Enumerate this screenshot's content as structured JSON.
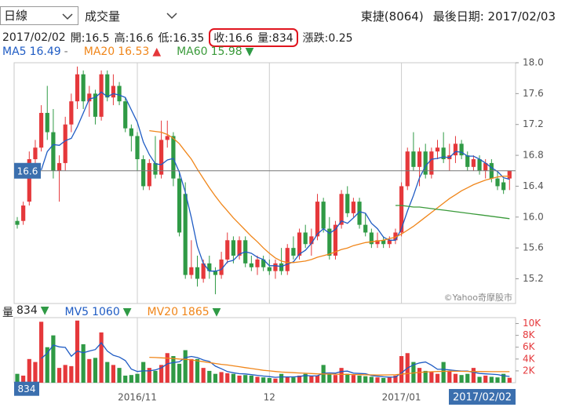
{
  "header": {
    "period": "日線",
    "indicator": "成交量",
    "stock": "東捷(8064)",
    "last_date_label": "最後日期:",
    "last_date": "2017/02/03"
  },
  "info": {
    "date": "2017/02/02",
    "fields": [
      {
        "label": "開:",
        "value": 16.5
      },
      {
        "label": "高:",
        "value": 16.6
      },
      {
        "label": "低:",
        "value": 16.35
      },
      {
        "label": "收:",
        "value": 16.6
      },
      {
        "label": "量:",
        "value": 834
      },
      {
        "label": "漲跌:",
        "value": 0.25
      }
    ]
  },
  "watermark": "©Yahoo奇摩股市",
  "chart_data": [
    {
      "type": "candlestick",
      "up_color": "#e5383b",
      "down_color": "#2f9a45",
      "categories": [
        null,
        null,
        null,
        null,
        null,
        null,
        null,
        null,
        null,
        null,
        null,
        null,
        null,
        null,
        null,
        null,
        null,
        null,
        null,
        null,
        "2016/11",
        null,
        null,
        null,
        null,
        null,
        null,
        null,
        null,
        null,
        null,
        null,
        null,
        null,
        null,
        null,
        null,
        null,
        null,
        null,
        null,
        null,
        "12",
        null,
        null,
        null,
        null,
        null,
        null,
        null,
        null,
        null,
        null,
        null,
        null,
        null,
        null,
        null,
        null,
        null,
        null,
        null,
        null,
        null,
        "2017/01",
        null,
        null,
        null,
        null,
        null,
        null,
        null,
        null,
        null,
        null,
        null,
        null,
        null,
        null,
        null,
        null,
        null,
        null
      ],
      "open": [
        15.95,
        15.95,
        16.2,
        16.75,
        16.9,
        17.35,
        17.1,
        16.6,
        16.7,
        17.2,
        17.5,
        17.85,
        17.5,
        17.6,
        17.3,
        17.85,
        17.55,
        17.7,
        17.5,
        17.15,
        17.05,
        16.75,
        16.4,
        16.7,
        16.55,
        17.0,
        17.05,
        16.5,
        16.3,
        15.25,
        15.35,
        15.2,
        15.4,
        15.3,
        15.25,
        15.45,
        15.7,
        15.5,
        15.7,
        15.4,
        15.35,
        15.45,
        15.35,
        15.3,
        15.4,
        15.3,
        15.6,
        15.5,
        15.8,
        15.65,
        15.75,
        16.2,
        15.85,
        15.5,
        15.9,
        16.3,
        16.05,
        16.2,
        15.9,
        15.8,
        15.65,
        15.7,
        15.65,
        15.7,
        15.8,
        16.4,
        16.85,
        16.65,
        16.85,
        16.55,
        16.85,
        16.9,
        16.75,
        16.8,
        16.95,
        16.8,
        16.65,
        16.75,
        16.6,
        16.7,
        16.5,
        16.45,
        16.5
      ],
      "high": [
        16.0,
        16.2,
        16.85,
        17.0,
        17.45,
        17.7,
        17.4,
        16.8,
        17.3,
        17.6,
        17.95,
        17.9,
        17.7,
        17.65,
        17.9,
        17.9,
        17.85,
        17.75,
        17.55,
        17.2,
        17.1,
        16.8,
        16.75,
        17.05,
        17.25,
        17.25,
        17.1,
        16.6,
        16.45,
        15.7,
        15.5,
        15.45,
        15.5,
        15.35,
        15.55,
        15.8,
        15.75,
        15.75,
        15.75,
        15.5,
        15.5,
        15.5,
        15.45,
        15.45,
        15.6,
        15.65,
        15.75,
        15.85,
        15.9,
        15.85,
        16.3,
        16.25,
        16.0,
        15.95,
        16.35,
        16.4,
        16.25,
        16.25,
        16.05,
        15.85,
        15.8,
        15.75,
        15.75,
        15.85,
        16.45,
        16.9,
        17.1,
        16.9,
        16.95,
        16.9,
        17.0,
        17.1,
        16.95,
        17.05,
        17.0,
        16.85,
        16.8,
        16.8,
        16.75,
        16.75,
        16.6,
        16.5,
        16.6
      ],
      "low": [
        15.85,
        15.9,
        16.15,
        16.6,
        16.85,
        17.0,
        16.5,
        16.2,
        16.6,
        17.1,
        17.4,
        17.4,
        17.3,
        17.2,
        17.25,
        17.5,
        17.45,
        17.45,
        17.1,
        16.85,
        16.6,
        16.35,
        16.35,
        16.5,
        16.5,
        16.9,
        16.4,
        15.75,
        15.2,
        15.2,
        15.1,
        15.15,
        15.2,
        15.0,
        15.2,
        15.4,
        15.4,
        15.45,
        15.35,
        15.3,
        15.25,
        15.3,
        15.25,
        15.2,
        15.25,
        15.25,
        15.45,
        15.45,
        15.6,
        15.5,
        15.7,
        15.8,
        15.45,
        15.45,
        15.85,
        16.0,
        16.0,
        15.85,
        15.75,
        15.6,
        15.6,
        15.6,
        15.6,
        15.65,
        15.75,
        16.35,
        16.6,
        16.4,
        16.5,
        16.5,
        16.75,
        16.7,
        16.6,
        16.7,
        16.75,
        16.6,
        16.6,
        16.55,
        16.5,
        16.45,
        16.35,
        16.3,
        16.35
      ],
      "close": [
        15.9,
        16.15,
        16.75,
        16.9,
        17.35,
        17.1,
        16.6,
        16.7,
        17.2,
        17.5,
        17.85,
        17.5,
        17.6,
        17.3,
        17.85,
        17.55,
        17.7,
        17.5,
        17.15,
        17.05,
        16.75,
        16.4,
        16.7,
        16.55,
        17.0,
        17.05,
        16.5,
        15.8,
        15.25,
        15.35,
        15.2,
        15.4,
        15.3,
        15.25,
        15.45,
        15.7,
        15.5,
        15.7,
        15.4,
        15.35,
        15.45,
        15.35,
        15.3,
        15.4,
        15.3,
        15.6,
        15.5,
        15.8,
        15.65,
        15.75,
        16.2,
        15.85,
        15.5,
        15.9,
        16.3,
        16.05,
        16.2,
        15.9,
        15.8,
        15.65,
        15.7,
        15.65,
        15.7,
        15.8,
        16.4,
        16.85,
        16.65,
        16.85,
        16.55,
        16.85,
        16.9,
        16.75,
        16.8,
        16.95,
        16.8,
        16.65,
        16.75,
        16.6,
        16.7,
        16.5,
        16.4,
        16.35,
        16.6
      ],
      "series": [
        {
          "name": "MA5",
          "color": "#1f5cc4",
          "trend": "-",
          "values": [
            null,
            null,
            null,
            null,
            16.61,
            16.85,
            16.94,
            16.93,
            16.99,
            17.02,
            17.17,
            17.35,
            17.53,
            17.55,
            17.62,
            17.56,
            17.6,
            17.58,
            17.55,
            17.39,
            17.23,
            16.97,
            16.81,
            16.69,
            16.68,
            16.74,
            16.76,
            16.58,
            16.32,
            15.99,
            15.62,
            15.4,
            15.3,
            15.3,
            15.32,
            15.42,
            15.44,
            15.52,
            15.55,
            15.53,
            15.48,
            15.45,
            15.37,
            15.37,
            15.36,
            15.39,
            15.42,
            15.52,
            15.57,
            15.66,
            15.78,
            15.85,
            15.79,
            15.84,
            15.95,
            15.92,
            15.99,
            16.07,
            16.05,
            15.92,
            15.85,
            15.74,
            15.7,
            15.7,
            15.85,
            16.08,
            16.28,
            16.51,
            16.66,
            16.75,
            16.76,
            16.78,
            16.77,
            16.85,
            16.84,
            16.79,
            16.79,
            16.75,
            16.7,
            16.64,
            16.59,
            16.51,
            16.49
          ]
        },
        {
          "name": "MA20",
          "color": "#f0861a",
          "trend": "▲",
          "values": [
            null,
            null,
            null,
            null,
            null,
            null,
            null,
            null,
            null,
            null,
            null,
            null,
            null,
            null,
            null,
            null,
            null,
            null,
            null,
            null,
            null,
            null,
            17.12,
            17.11,
            17.1,
            17.07,
            17.02,
            16.95,
            16.85,
            16.75,
            16.62,
            16.5,
            16.38,
            16.27,
            16.17,
            16.08,
            15.99,
            15.91,
            15.83,
            15.75,
            15.68,
            15.6,
            15.53,
            15.47,
            15.43,
            15.41,
            15.41,
            15.42,
            15.43,
            15.45,
            15.48,
            15.5,
            15.52,
            15.55,
            15.58,
            15.6,
            15.63,
            15.65,
            15.67,
            15.68,
            15.69,
            15.7,
            15.72,
            15.74,
            15.78,
            15.83,
            15.88,
            15.94,
            16.0,
            16.06,
            16.12,
            16.18,
            16.24,
            16.29,
            16.34,
            16.38,
            16.42,
            16.45,
            16.48,
            16.5,
            16.52,
            16.53,
            16.53
          ]
        },
        {
          "name": "MA60",
          "color": "#3a9a3a",
          "trend": "▼",
          "values": [
            null,
            null,
            null,
            null,
            null,
            null,
            null,
            null,
            null,
            null,
            null,
            null,
            null,
            null,
            null,
            null,
            null,
            null,
            null,
            null,
            null,
            null,
            null,
            null,
            null,
            null,
            null,
            null,
            null,
            null,
            null,
            null,
            null,
            null,
            null,
            null,
            null,
            null,
            null,
            null,
            null,
            null,
            null,
            null,
            null,
            null,
            null,
            null,
            null,
            null,
            null,
            null,
            null,
            null,
            null,
            null,
            null,
            null,
            null,
            null,
            null,
            null,
            null,
            16.15,
            16.15,
            16.14,
            16.13,
            16.13,
            16.12,
            16.11,
            16.1,
            16.09,
            16.08,
            16.07,
            16.06,
            16.05,
            16.04,
            16.03,
            16.02,
            16.01,
            16.0,
            15.99,
            15.98
          ]
        }
      ],
      "ylim": [
        14.88,
        18.0
      ],
      "yticks": [
        15.2,
        15.6,
        {
          "value": 16,
          "label": "16.0"
        },
        16.4,
        16.8,
        17.2,
        17.6,
        {
          "value": 18,
          "label": "18.0"
        }
      ]
    },
    {
      "type": "bar",
      "name": "量",
      "trend": "▼",
      "values": [
        1500,
        1200,
        4000,
        3500,
        10300,
        6000,
        8000,
        2500,
        3000,
        2800,
        10500,
        6500,
        4000,
        4200,
        8500,
        3500,
        3000,
        2500,
        1200,
        1300,
        1500,
        3500,
        2500,
        2000,
        3000,
        5000,
        4500,
        3200,
        5500,
        4000,
        4000,
        2500,
        2000,
        1500,
        1800,
        1600,
        1500,
        1200,
        1300,
        1200,
        1000,
        900,
        800,
        700,
        1500,
        1000,
        900,
        1200,
        1500,
        1100,
        1200,
        3000,
        1500,
        1300,
        2500,
        1500,
        1300,
        1200,
        1100,
        1000,
        900,
        800,
        900,
        1200,
        4500,
        5000,
        3500,
        2500,
        2000,
        1800,
        1500,
        3500,
        2000,
        1500,
        1300,
        1500,
        2500,
        1000,
        1200,
        1000,
        900,
        1500,
        834
      ],
      "series": [
        {
          "name": "MV5",
          "color": "#1f5cc4",
          "trend": "▼",
          "values": [
            null,
            null,
            null,
            null,
            4100,
            5000,
            6360,
            6060,
            5960,
            4460,
            5360,
            5060,
            5360,
            5600,
            6740,
            5340,
            4640,
            4340,
            3740,
            2300,
            1900,
            2000,
            2000,
            2160,
            2500,
            3200,
            3400,
            3540,
            4240,
            4440,
            4240,
            3840,
            3600,
            2800,
            2360,
            1880,
            1680,
            1520,
            1480,
            1360,
            1240,
            1120,
            1040,
            920,
            980,
            980,
            980,
            1060,
            1220,
            1140,
            1180,
            1600,
            1660,
            1620,
            1900,
            1960,
            1620,
            1560,
            1520,
            1220,
            1100,
            1000,
            940,
            960,
            1660,
            2480,
            3020,
            3340,
            3500,
            2960,
            2260,
            2260,
            2160,
            2060,
            1960,
            1960,
            1760,
            1560,
            1500,
            1440,
            1380,
            1180,
            1060
          ]
        },
        {
          "name": "MV20",
          "color": "#f0861a",
          "trend": "▼",
          "values": [
            null,
            null,
            null,
            null,
            null,
            null,
            null,
            null,
            null,
            null,
            null,
            null,
            null,
            null,
            null,
            null,
            null,
            null,
            null,
            null,
            null,
            null,
            4300,
            4250,
            4200,
            4150,
            4100,
            4000,
            3950,
            3850,
            3700,
            3550,
            3400,
            3250,
            3100,
            3000,
            2850,
            2700,
            2550,
            2400,
            2250,
            2100,
            2000,
            1900,
            1800,
            1750,
            1700,
            1650,
            1600,
            1550,
            1500,
            1480,
            1460,
            1440,
            1420,
            1400,
            1380,
            1360,
            1340,
            1320,
            1300,
            1300,
            1320,
            1350,
            1450,
            1550,
            1650,
            1750,
            1800,
            1850,
            1900,
            1920,
            1930,
            1930,
            1920,
            1910,
            1900,
            1890,
            1880,
            1875,
            1870,
            1868,
            1865
          ]
        }
      ],
      "ylim": [
        0,
        11000
      ],
      "yticks": [
        {
          "value": 2000,
          "label": "2K"
        },
        {
          "value": 4000,
          "label": "4K"
        },
        {
          "value": 6000,
          "label": "6K"
        },
        {
          "value": 8000,
          "label": "8K"
        },
        {
          "value": 10000,
          "label": "10K"
        }
      ]
    }
  ]
}
